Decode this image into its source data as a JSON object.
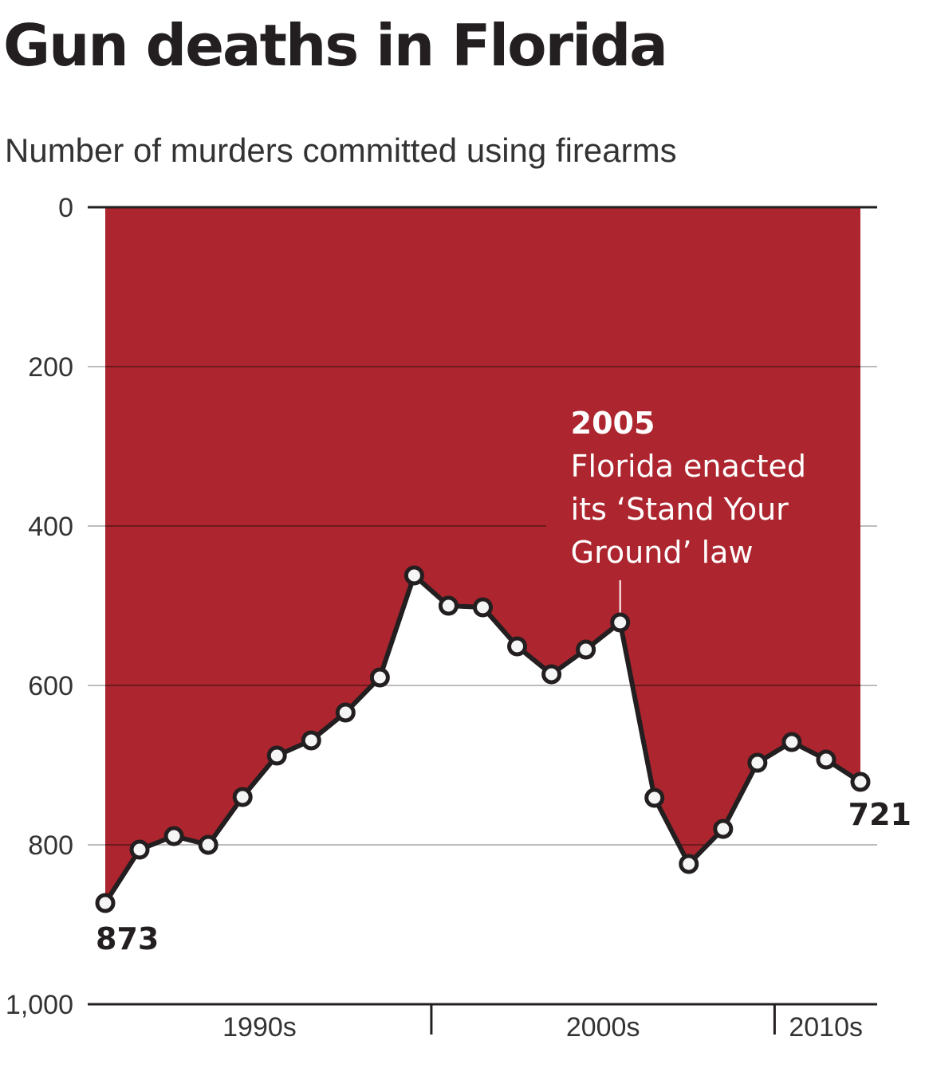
{
  "title": "Gun deaths in Florida",
  "subtitle": "Number of murders committed using firearms",
  "colors": {
    "fill": "#ad252e",
    "line": "#231f20",
    "grid_below": "#bdbdbd",
    "grid_over_fill": "#6e1a1f",
    "marker_fill": "#f5f5f5"
  },
  "chart_data": {
    "type": "area",
    "title": "Gun deaths in Florida",
    "subtitle": "Number of murders committed using firearms",
    "y_inverted": true,
    "ylim": [
      0,
      1000
    ],
    "xlim": [
      1989.5,
      2012.5
    ],
    "y_ticks": [
      0,
      200,
      400,
      600,
      800,
      1000
    ],
    "y_tick_labels": [
      "0",
      "200",
      "400",
      "600",
      "800",
      "1,000"
    ],
    "x_tick_labels": [
      "1990s",
      "2000s",
      "2010s"
    ],
    "grid": true,
    "series": [
      {
        "x": [
          1990,
          1991,
          1992,
          1993,
          1994,
          1995,
          1996,
          1997,
          1998,
          1999,
          2000,
          2001,
          2002,
          2003,
          2004,
          2005,
          2006,
          2007,
          2008,
          2009,
          2010,
          2011,
          2012
        ],
        "values": [
          873,
          806,
          789,
          800,
          740,
          688,
          669,
          634,
          590,
          462,
          500,
          502,
          551,
          586,
          555,
          521,
          741,
          824,
          780,
          697,
          671,
          693,
          721
        ]
      }
    ],
    "endpoint_labels": [
      "873",
      "721"
    ],
    "annotation": {
      "x": 2005,
      "year": "2005",
      "lines": [
        "Florida enacted",
        "its ‘Stand Your",
        "Ground’ law"
      ]
    }
  }
}
